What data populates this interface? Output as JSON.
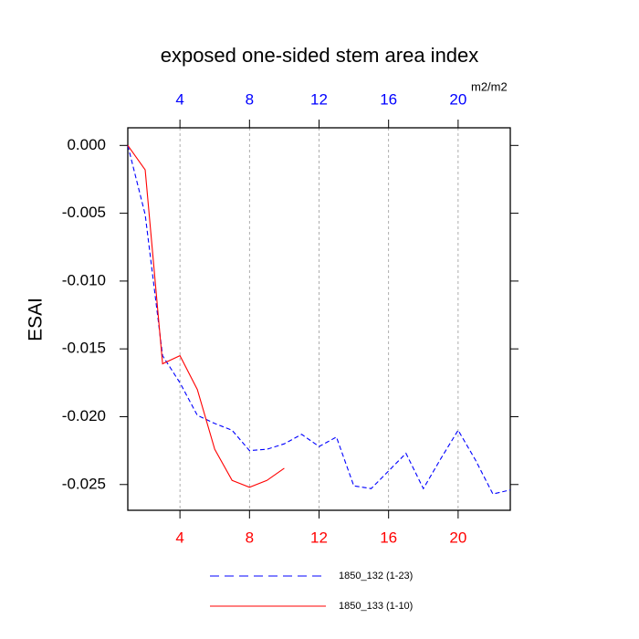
{
  "chart_data": {
    "type": "line",
    "title": "exposed one-sided stem area index",
    "y_label": "ESAI",
    "x_units": "m2/m2",
    "xlim": [
      1,
      23
    ],
    "xticks": [
      4,
      8,
      12,
      16,
      20
    ],
    "top_tick_color": "#0000ff",
    "bottom_tick_color": "#ff0000",
    "ylim": [
      -0.0269,
      0.0013
    ],
    "yticks": [
      {
        "value": 0,
        "label": "0.000"
      },
      {
        "value": -0.005,
        "label": "-0.005"
      },
      {
        "value": -0.01,
        "label": "-0.010"
      },
      {
        "value": -0.015,
        "label": "-0.015"
      },
      {
        "value": -0.02,
        "label": "-0.020"
      },
      {
        "value": -0.025,
        "label": "-0.025"
      }
    ],
    "grid": true,
    "x": [
      1,
      2,
      3,
      4,
      5,
      6,
      7,
      8,
      9,
      10,
      11,
      12,
      13,
      14,
      15,
      16,
      17,
      18,
      19,
      20,
      21,
      22,
      23
    ],
    "series": [
      {
        "name": "1850_132 (1-23)",
        "color": "#0000ff",
        "dash": true,
        "values": [
          0,
          -0.0051,
          -0.0155,
          -0.0175,
          -0.0199,
          -0.0205,
          -0.021,
          -0.0225,
          -0.0224,
          -0.022,
          -0.0213,
          -0.0222,
          -0.0215,
          -0.0251,
          -0.0253,
          -0.024,
          -0.0227,
          -0.0253,
          -0.0231,
          -0.021,
          -0.0232,
          -0.0257,
          -0.0254
        ]
      },
      {
        "name": "1850_133 (1-10)",
        "color": "#ff0000",
        "dash": false,
        "values": [
          0,
          -0.0018,
          -0.0161,
          -0.0155,
          -0.018,
          -0.0224,
          -0.0247,
          -0.0252,
          -0.0247,
          -0.0238,
          null,
          null,
          null,
          null,
          null,
          null,
          null,
          null,
          null,
          null,
          null,
          null,
          null
        ]
      }
    ]
  }
}
